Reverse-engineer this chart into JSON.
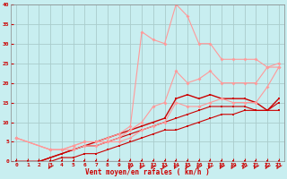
{
  "title": "",
  "xlabel": "Vent moyen/en rafales ( km/h )",
  "background_color": "#c8eef0",
  "grid_color": "#aadddd",
  "xlim": [
    -0.5,
    23.5
  ],
  "ylim": [
    0,
    40
  ],
  "xticks": [
    0,
    1,
    2,
    3,
    4,
    5,
    6,
    7,
    8,
    9,
    10,
    11,
    12,
    13,
    14,
    15,
    16,
    17,
    18,
    19,
    20,
    21,
    22,
    23
  ],
  "yticks": [
    0,
    5,
    10,
    15,
    20,
    25,
    30,
    35,
    40
  ],
  "series": [
    {
      "x": [
        0,
        1,
        2,
        3,
        4,
        5,
        6,
        7,
        8,
        9,
        10,
        11,
        12,
        13,
        14,
        15,
        16,
        17,
        18,
        19,
        20,
        21,
        22,
        23
      ],
      "y": [
        0,
        0,
        0,
        0,
        0,
        0,
        0,
        0,
        0,
        0,
        0,
        0,
        0,
        0,
        0,
        0,
        0,
        0,
        0,
        0,
        0,
        0,
        0,
        0
      ],
      "color": "#cc0000",
      "lw": 0.8,
      "marker": "s",
      "ms": 1.5,
      "alpha": 1.0
    },
    {
      "x": [
        0,
        1,
        2,
        3,
        4,
        5,
        6,
        7,
        8,
        9,
        10,
        11,
        12,
        13,
        14,
        15,
        16,
        17,
        18,
        19,
        20,
        21,
        22,
        23
      ],
      "y": [
        0,
        0,
        0,
        0,
        1,
        1,
        2,
        2,
        3,
        4,
        5,
        6,
        7,
        8,
        8,
        9,
        10,
        11,
        12,
        12,
        13,
        13,
        13,
        15
      ],
      "color": "#cc0000",
      "lw": 0.8,
      "marker": "s",
      "ms": 1.5,
      "alpha": 1.0
    },
    {
      "x": [
        0,
        1,
        2,
        3,
        4,
        5,
        6,
        7,
        8,
        9,
        10,
        11,
        12,
        13,
        14,
        15,
        16,
        17,
        18,
        19,
        20,
        21,
        22,
        23
      ],
      "y": [
        0,
        0,
        0,
        1,
        2,
        3,
        4,
        4,
        5,
        6,
        7,
        8,
        9,
        10,
        11,
        12,
        13,
        14,
        14,
        14,
        14,
        13,
        13,
        13
      ],
      "color": "#cc0000",
      "lw": 0.8,
      "marker": "s",
      "ms": 1.5,
      "alpha": 1.0
    },
    {
      "x": [
        0,
        1,
        2,
        3,
        4,
        5,
        6,
        7,
        8,
        9,
        10,
        11,
        12,
        13,
        14,
        15,
        16,
        17,
        18,
        19,
        20,
        21,
        22,
        23
      ],
      "y": [
        0,
        0,
        0,
        1,
        2,
        3,
        4,
        5,
        6,
        7,
        8,
        9,
        10,
        11,
        16,
        17,
        16,
        17,
        16,
        16,
        16,
        15,
        13,
        16
      ],
      "color": "#cc0000",
      "lw": 1.0,
      "marker": "s",
      "ms": 1.5,
      "alpha": 1.0
    },
    {
      "x": [
        0,
        3,
        4,
        5,
        6,
        7,
        8,
        9,
        10,
        11,
        12,
        13,
        14,
        15,
        16,
        17,
        18,
        19,
        20,
        21,
        22,
        23
      ],
      "y": [
        6,
        3,
        3,
        4,
        5,
        5,
        6,
        7,
        9,
        33,
        31,
        30,
        40,
        37,
        30,
        30,
        26,
        26,
        26,
        26,
        24,
        25
      ],
      "color": "#ff9999",
      "lw": 0.8,
      "marker": "D",
      "ms": 2.0,
      "alpha": 1.0
    },
    {
      "x": [
        0,
        3,
        4,
        5,
        6,
        7,
        8,
        9,
        10,
        11,
        12,
        13,
        14,
        15,
        16,
        17,
        18,
        19,
        20,
        21,
        22,
        23
      ],
      "y": [
        6,
        3,
        3,
        4,
        5,
        5,
        5,
        6,
        8,
        10,
        14,
        15,
        23,
        20,
        21,
        23,
        20,
        20,
        20,
        20,
        24,
        24
      ],
      "color": "#ff9999",
      "lw": 0.8,
      "marker": "D",
      "ms": 2.0,
      "alpha": 1.0
    },
    {
      "x": [
        0,
        3,
        4,
        5,
        6,
        7,
        8,
        9,
        10,
        11,
        12,
        13,
        14,
        15,
        16,
        17,
        18,
        19,
        20,
        21,
        22,
        23
      ],
      "y": [
        6,
        3,
        3,
        3,
        4,
        4,
        5,
        5,
        6,
        8,
        9,
        10,
        15,
        14,
        14,
        15,
        16,
        15,
        15,
        15,
        19,
        24
      ],
      "color": "#ff9999",
      "lw": 0.8,
      "marker": "D",
      "ms": 2.0,
      "alpha": 1.0
    }
  ],
  "wind_arrows_x": [
    3,
    10,
    11,
    12,
    13,
    14,
    15,
    16,
    17,
    18,
    19,
    20,
    21,
    22,
    23
  ],
  "wind_arrows_color": "#cc0000"
}
